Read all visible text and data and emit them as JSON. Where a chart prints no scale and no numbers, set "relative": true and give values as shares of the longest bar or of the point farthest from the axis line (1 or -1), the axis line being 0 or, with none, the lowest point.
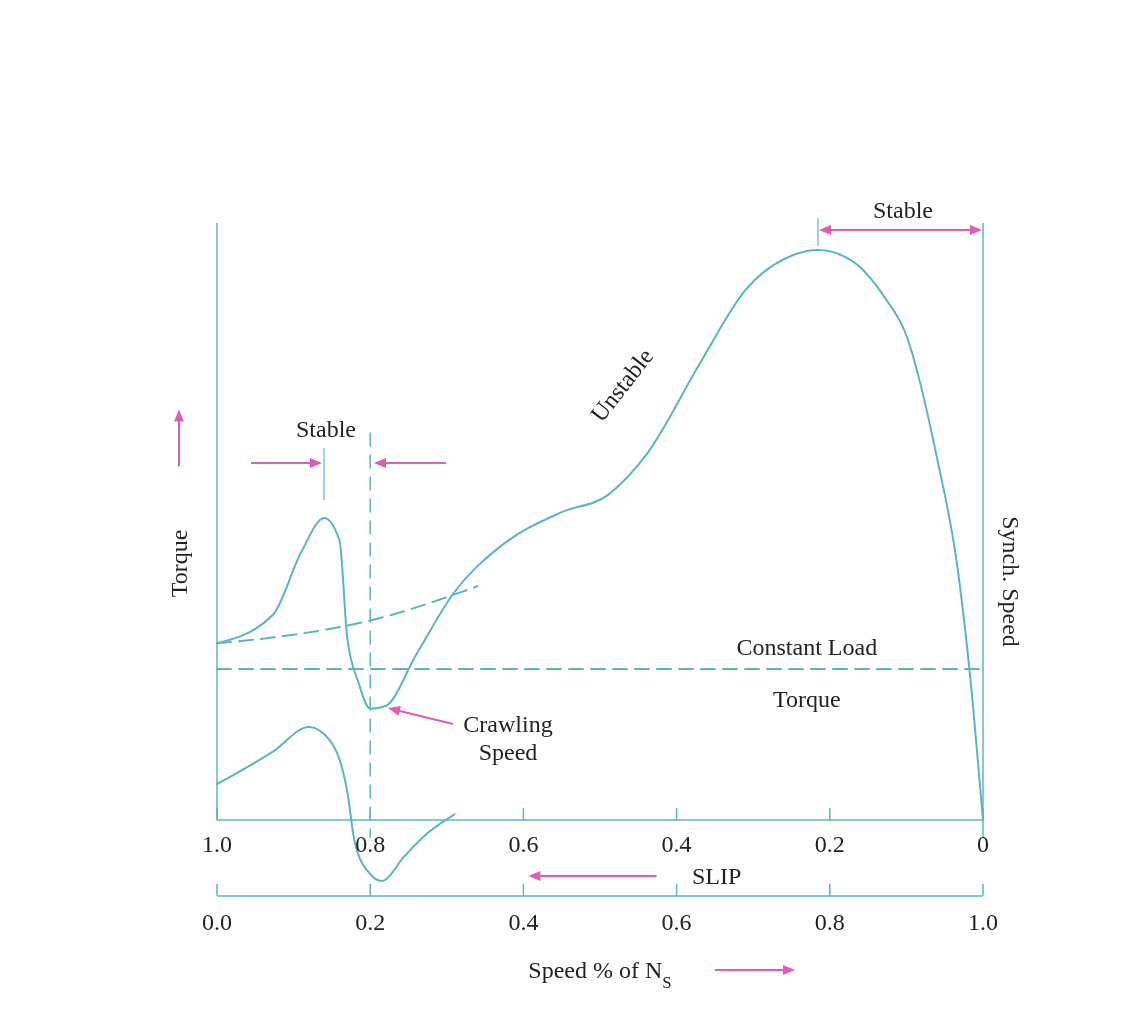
{
  "chart_data": {
    "type": "line",
    "relative": true,
    "xlabel": "Speed % of N$_{S}$",
    "x2label": "SLIP",
    "ylabel": "Torque",
    "xlim": [
      0,
      1
    ],
    "xticks": [
      {
        "value": 0,
        "label": "0.0"
      },
      0.2,
      0.4,
      0.6,
      0.8,
      {
        "value": 1,
        "label": "1.0"
      }
    ],
    "x2lim": [
      1,
      0
    ],
    "x2ticks": [
      {
        "value": 1,
        "label": "1.0"
      },
      0.8,
      0.6,
      0.4,
      0.2,
      0
    ],
    "grid": false,
    "marker": "none",
    "series": [
      {
        "color": "#5ab4c6",
        "line_style": "solid",
        "x": [
          0,
          0.073,
          0.11,
          0.14,
          0.16,
          0.17,
          0.185,
          0.2,
          0.22,
          0.26,
          0.31,
          0.37,
          0.45,
          0.51,
          0.56,
          0.63,
          0.69,
          0.75,
          0.785,
          0.83,
          0.87,
          0.9,
          0.94,
          0.967,
          0.987,
          1
        ],
        "values": [
          0.31,
          0.36,
          0.47,
          0.53,
          0.49,
          0.32,
          0.24,
          0.195,
          0.2,
          0.29,
          0.4,
          0.48,
          0.54,
          0.57,
          0.64,
          0.8,
          0.93,
          0.99,
          1,
          0.98,
          0.92,
          0.85,
          0.635,
          0.44,
          0.2,
          0
        ]
      },
      {
        "color": "#5ab4c6",
        "line_style": "dashed",
        "x": [
          0,
          0.1,
          0.2,
          0.34
        ],
        "values": [
          0.31,
          0.325,
          0.35,
          0.41
        ]
      },
      {
        "color": "#5ab4c6",
        "line_style": "solid",
        "x": [
          0,
          0.073,
          0.12,
          0.147,
          0.17,
          0.18,
          0.2,
          0.215,
          0.245,
          0.275,
          0.31
        ],
        "values": [
          0.063,
          0.12,
          0.163,
          0.14,
          0.05,
          -0.04,
          -0.095,
          -0.107,
          -0.063,
          -0.023,
          0.01
        ]
      },
      {
        "name": "Constant Load Torque",
        "color": "#5ab4c6",
        "line_style": "dashed",
        "x": [
          0,
          1
        ],
        "values": [
          0.265,
          0.265
        ]
      }
    ],
    "ref_lines": [
      {
        "axis": "y",
        "value": 0,
        "color": "#5ab4c6",
        "line_style": "solid"
      },
      {
        "axis": "x",
        "value": 1,
        "label": "Synch. Speed",
        "color": "#5ab4c6",
        "line_style": "solid"
      },
      {
        "axis": "x",
        "value": 0.2,
        "color": "#5ab4c6",
        "line_style": "dashed"
      }
    ],
    "annotations": [
      "Stable",
      "Stable",
      "Unstable",
      "Crawling Speed"
    ]
  }
}
